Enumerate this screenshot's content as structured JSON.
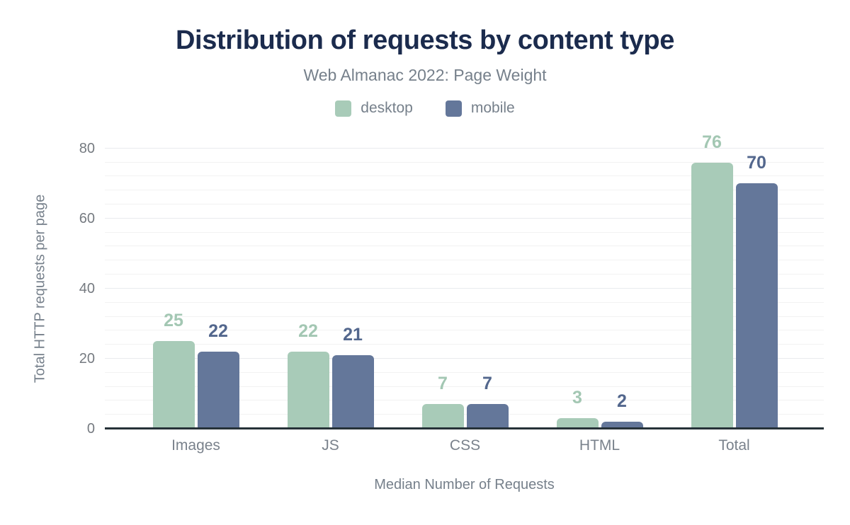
{
  "header": {
    "title": "Distribution of requests by content type",
    "subtitle": "Web Almanac 2022: Page Weight"
  },
  "colors": {
    "background": "#ffffff",
    "title": "#1b2b4d",
    "muted_text": "#76808b",
    "tick_text": "#757a80",
    "axis_line": "#263238",
    "grid_minor": "#f2f2f2",
    "grid_major": "#e9ebee",
    "desktop": "#a8cbb8",
    "desktop_label": "#a3c7b3",
    "mobile": "#64779a",
    "mobile_label": "#53678d"
  },
  "chart_data": {
    "type": "bar",
    "title": "Distribution of requests by content type",
    "subtitle": "Web Almanac 2022: Page Weight",
    "categories": [
      "Images",
      "JS",
      "CSS",
      "HTML",
      "Total"
    ],
    "series": [
      {
        "name": "desktop",
        "color": "#a8cbb8",
        "label_color": "#a3c7b3",
        "values": [
          25,
          22,
          7,
          3,
          76
        ]
      },
      {
        "name": "mobile",
        "color": "#64779a",
        "label_color": "#53678d",
        "values": [
          22,
          21,
          7,
          2,
          70
        ]
      }
    ],
    "xlabel": "Median Number of Requests",
    "ylabel": "Total HTTP requests per page",
    "ylim": [
      0,
      84
    ],
    "yticks": [
      0,
      20,
      40,
      60,
      80
    ],
    "grid": {
      "minor_step": 4,
      "major_step": 20,
      "visible": true
    },
    "legend_position": "top",
    "data_labels": true
  }
}
